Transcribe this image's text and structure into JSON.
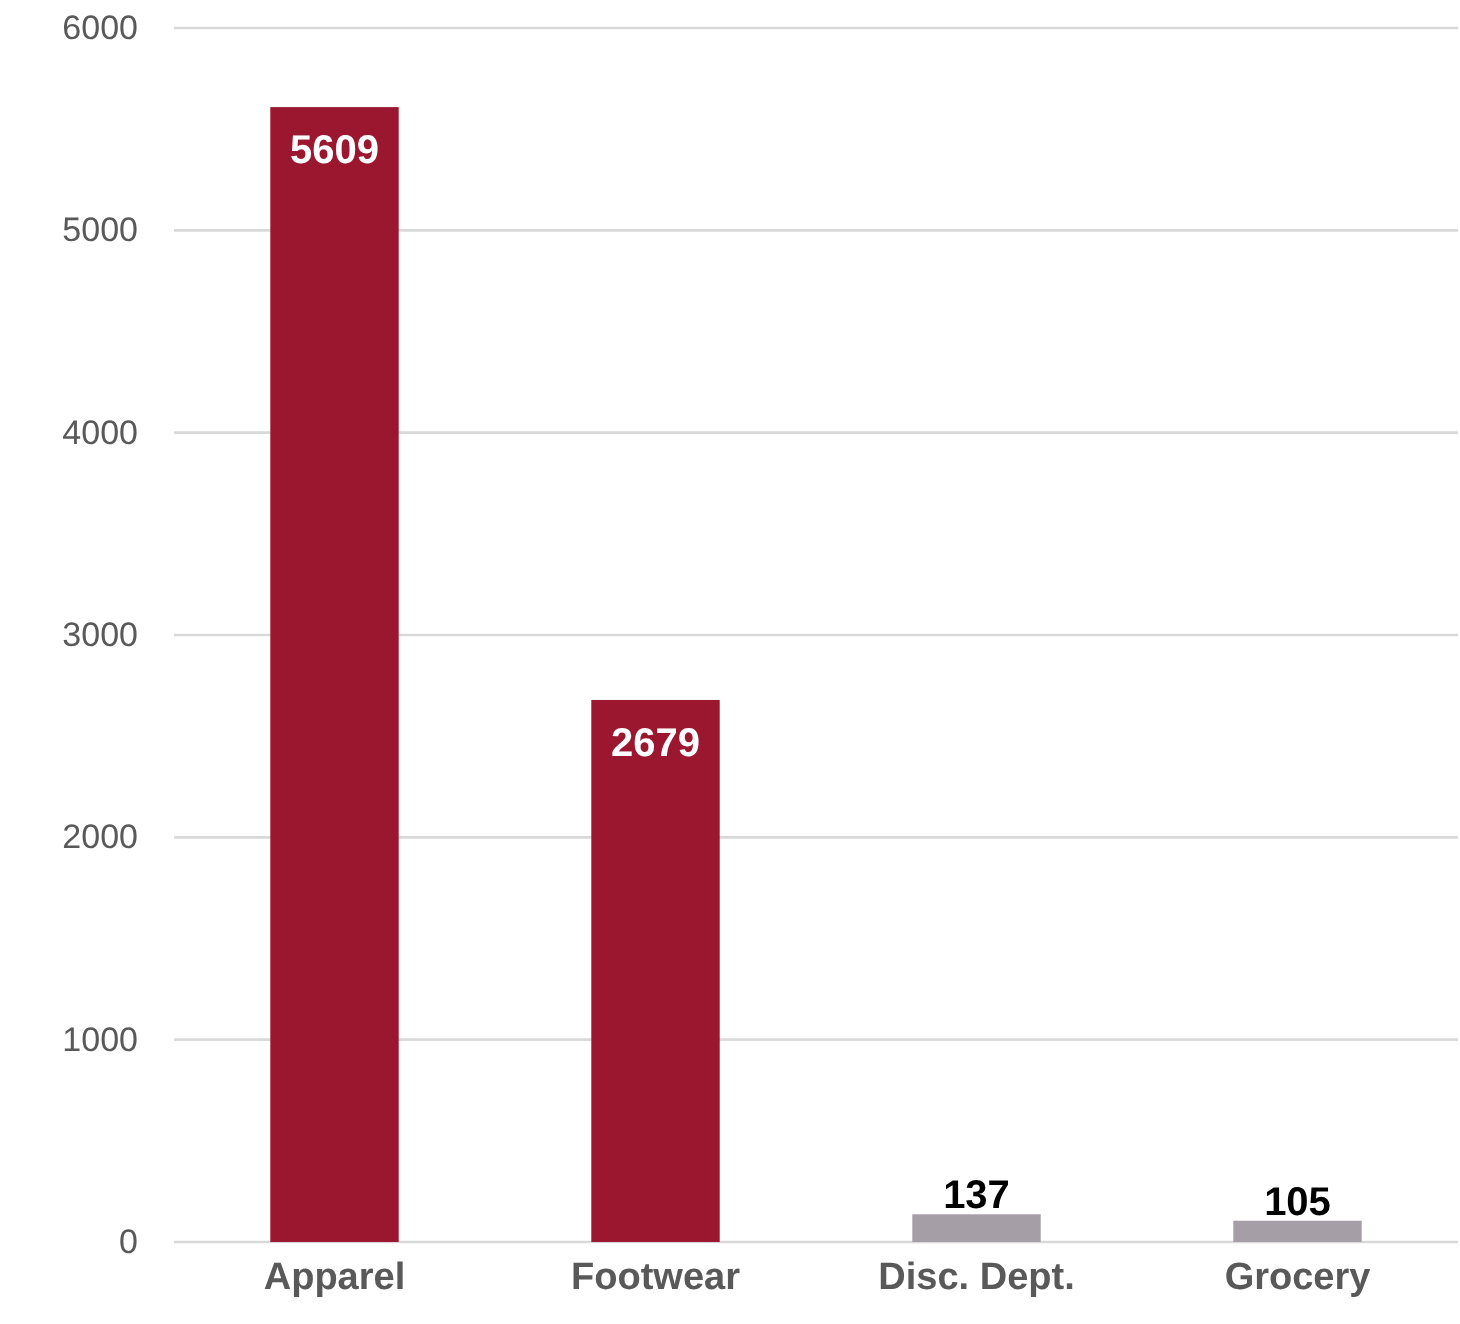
{
  "chart_data": {
    "type": "bar",
    "categories": [
      "Apparel",
      "Footwear",
      "Disc. Dept.",
      "Grocery"
    ],
    "values": [
      5609,
      2679,
      137,
      105
    ],
    "colors": [
      "#9b1730",
      "#9b1730",
      "#a59ea6",
      "#a59ea6"
    ],
    "ylim": [
      0,
      6000
    ],
    "yticks": [
      0,
      1000,
      2000,
      3000,
      4000,
      5000,
      6000
    ],
    "grid": "y",
    "data_labels": true
  }
}
